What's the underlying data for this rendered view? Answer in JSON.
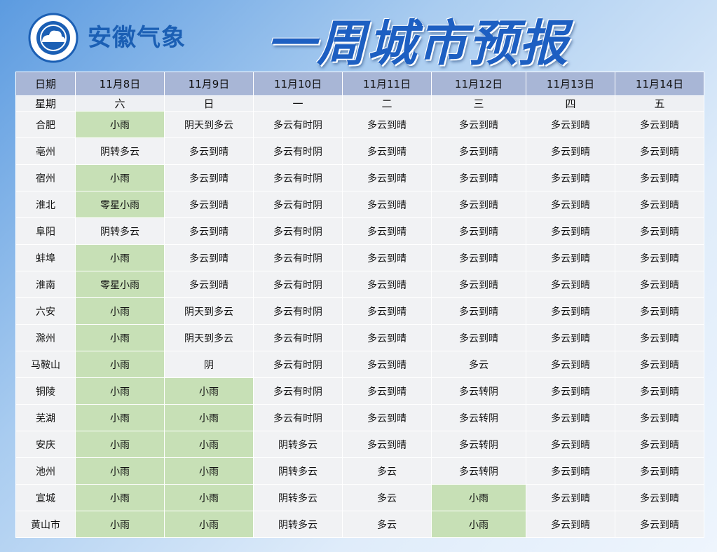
{
  "header": {
    "brand": "安徽气象",
    "title": "一周城市预报"
  },
  "table": {
    "columns": [
      "日期",
      "11月8日",
      "11月9日",
      "11月10日",
      "11月11日",
      "11月12日",
      "11月13日",
      "11月14日"
    ],
    "weekdays": [
      "星期",
      "六",
      "日",
      "一",
      "二",
      "三",
      "四",
      "五"
    ],
    "rows": [
      [
        "合肥",
        "小雨",
        "阴天到多云",
        "多云有时阴",
        "多云到晴",
        "多云到晴",
        "多云到晴",
        "多云到晴"
      ],
      [
        "亳州",
        "阴转多云",
        "多云到晴",
        "多云有时阴",
        "多云到晴",
        "多云到晴",
        "多云到晴",
        "多云到晴"
      ],
      [
        "宿州",
        "小雨",
        "多云到晴",
        "多云有时阴",
        "多云到晴",
        "多云到晴",
        "多云到晴",
        "多云到晴"
      ],
      [
        "淮北",
        "零星小雨",
        "多云到晴",
        "多云有时阴",
        "多云到晴",
        "多云到晴",
        "多云到晴",
        "多云到晴"
      ],
      [
        "阜阳",
        "阴转多云",
        "多云到晴",
        "多云有时阴",
        "多云到晴",
        "多云到晴",
        "多云到晴",
        "多云到晴"
      ],
      [
        "蚌埠",
        "小雨",
        "多云到晴",
        "多云有时阴",
        "多云到晴",
        "多云到晴",
        "多云到晴",
        "多云到晴"
      ],
      [
        "淮南",
        "零星小雨",
        "多云到晴",
        "多云有时阴",
        "多云到晴",
        "多云到晴",
        "多云到晴",
        "多云到晴"
      ],
      [
        "六安",
        "小雨",
        "阴天到多云",
        "多云有时阴",
        "多云到晴",
        "多云到晴",
        "多云到晴",
        "多云到晴"
      ],
      [
        "滁州",
        "小雨",
        "阴天到多云",
        "多云有时阴",
        "多云到晴",
        "多云到晴",
        "多云到晴",
        "多云到晴"
      ],
      [
        "马鞍山",
        "小雨",
        "阴",
        "多云有时阴",
        "多云到晴",
        "多云",
        "多云到晴",
        "多云到晴"
      ],
      [
        "铜陵",
        "小雨",
        "小雨",
        "多云有时阴",
        "多云到晴",
        "多云转阴",
        "多云到晴",
        "多云到晴"
      ],
      [
        "芜湖",
        "小雨",
        "小雨",
        "多云有时阴",
        "多云到晴",
        "多云转阴",
        "多云到晴",
        "多云到晴"
      ],
      [
        "安庆",
        "小雨",
        "小雨",
        "阴转多云",
        "多云到晴",
        "多云转阴",
        "多云到晴",
        "多云到晴"
      ],
      [
        "池州",
        "小雨",
        "小雨",
        "阴转多云",
        "多云",
        "多云转阴",
        "多云到晴",
        "多云到晴"
      ],
      [
        "宣城",
        "小雨",
        "小雨",
        "阴转多云",
        "多云",
        "小雨",
        "多云到晴",
        "多云到晴"
      ],
      [
        "黄山市",
        "小雨",
        "小雨",
        "阴转多云",
        "多云",
        "小雨",
        "多云到晴",
        "多云到晴"
      ]
    ]
  }
}
